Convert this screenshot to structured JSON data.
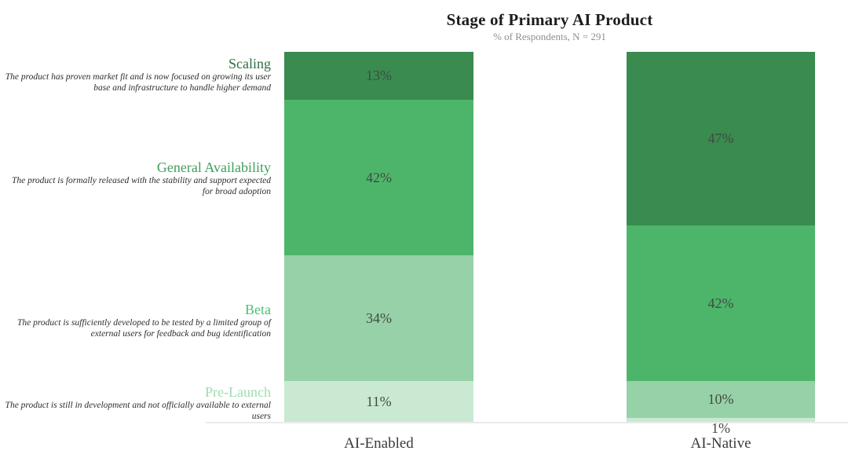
{
  "chart_data": {
    "type": "bar",
    "stacked": true,
    "orientation": "vertical",
    "title": "Stage of Primary AI Product",
    "subtitle": "% of Respondents, N = 291",
    "value_suffix": "%",
    "grid": false,
    "ylim": [
      0,
      100
    ],
    "categories": [
      {
        "label": "Scaling",
        "description": "The product has proven market fit and is now focused on growing its user base and infrastructure to handle higher demand",
        "color": "#398b4f",
        "label_color": "#2d6e40"
      },
      {
        "label": "General Availability",
        "description": "The product is formally released with the stability and support expected for broad adoption",
        "color": "#4db56a",
        "label_color": "#3f9f5c"
      },
      {
        "label": "Beta",
        "description": "The product is sufficiently developed to be tested by a limited group of external users for feedback and bug identification",
        "color": "#97d1a7",
        "label_color": "#4fbe77"
      },
      {
        "label": "Pre-Launch",
        "description": "The product is still in development and not officially available to external users",
        "color": "#cae9d2",
        "label_color": "#9edcb0"
      }
    ],
    "series": [
      {
        "name": "AI-Enabled",
        "values": [
          13,
          42,
          34,
          11
        ]
      },
      {
        "name": "AI-Native",
        "values": [
          47,
          42,
          10,
          1
        ]
      }
    ]
  }
}
